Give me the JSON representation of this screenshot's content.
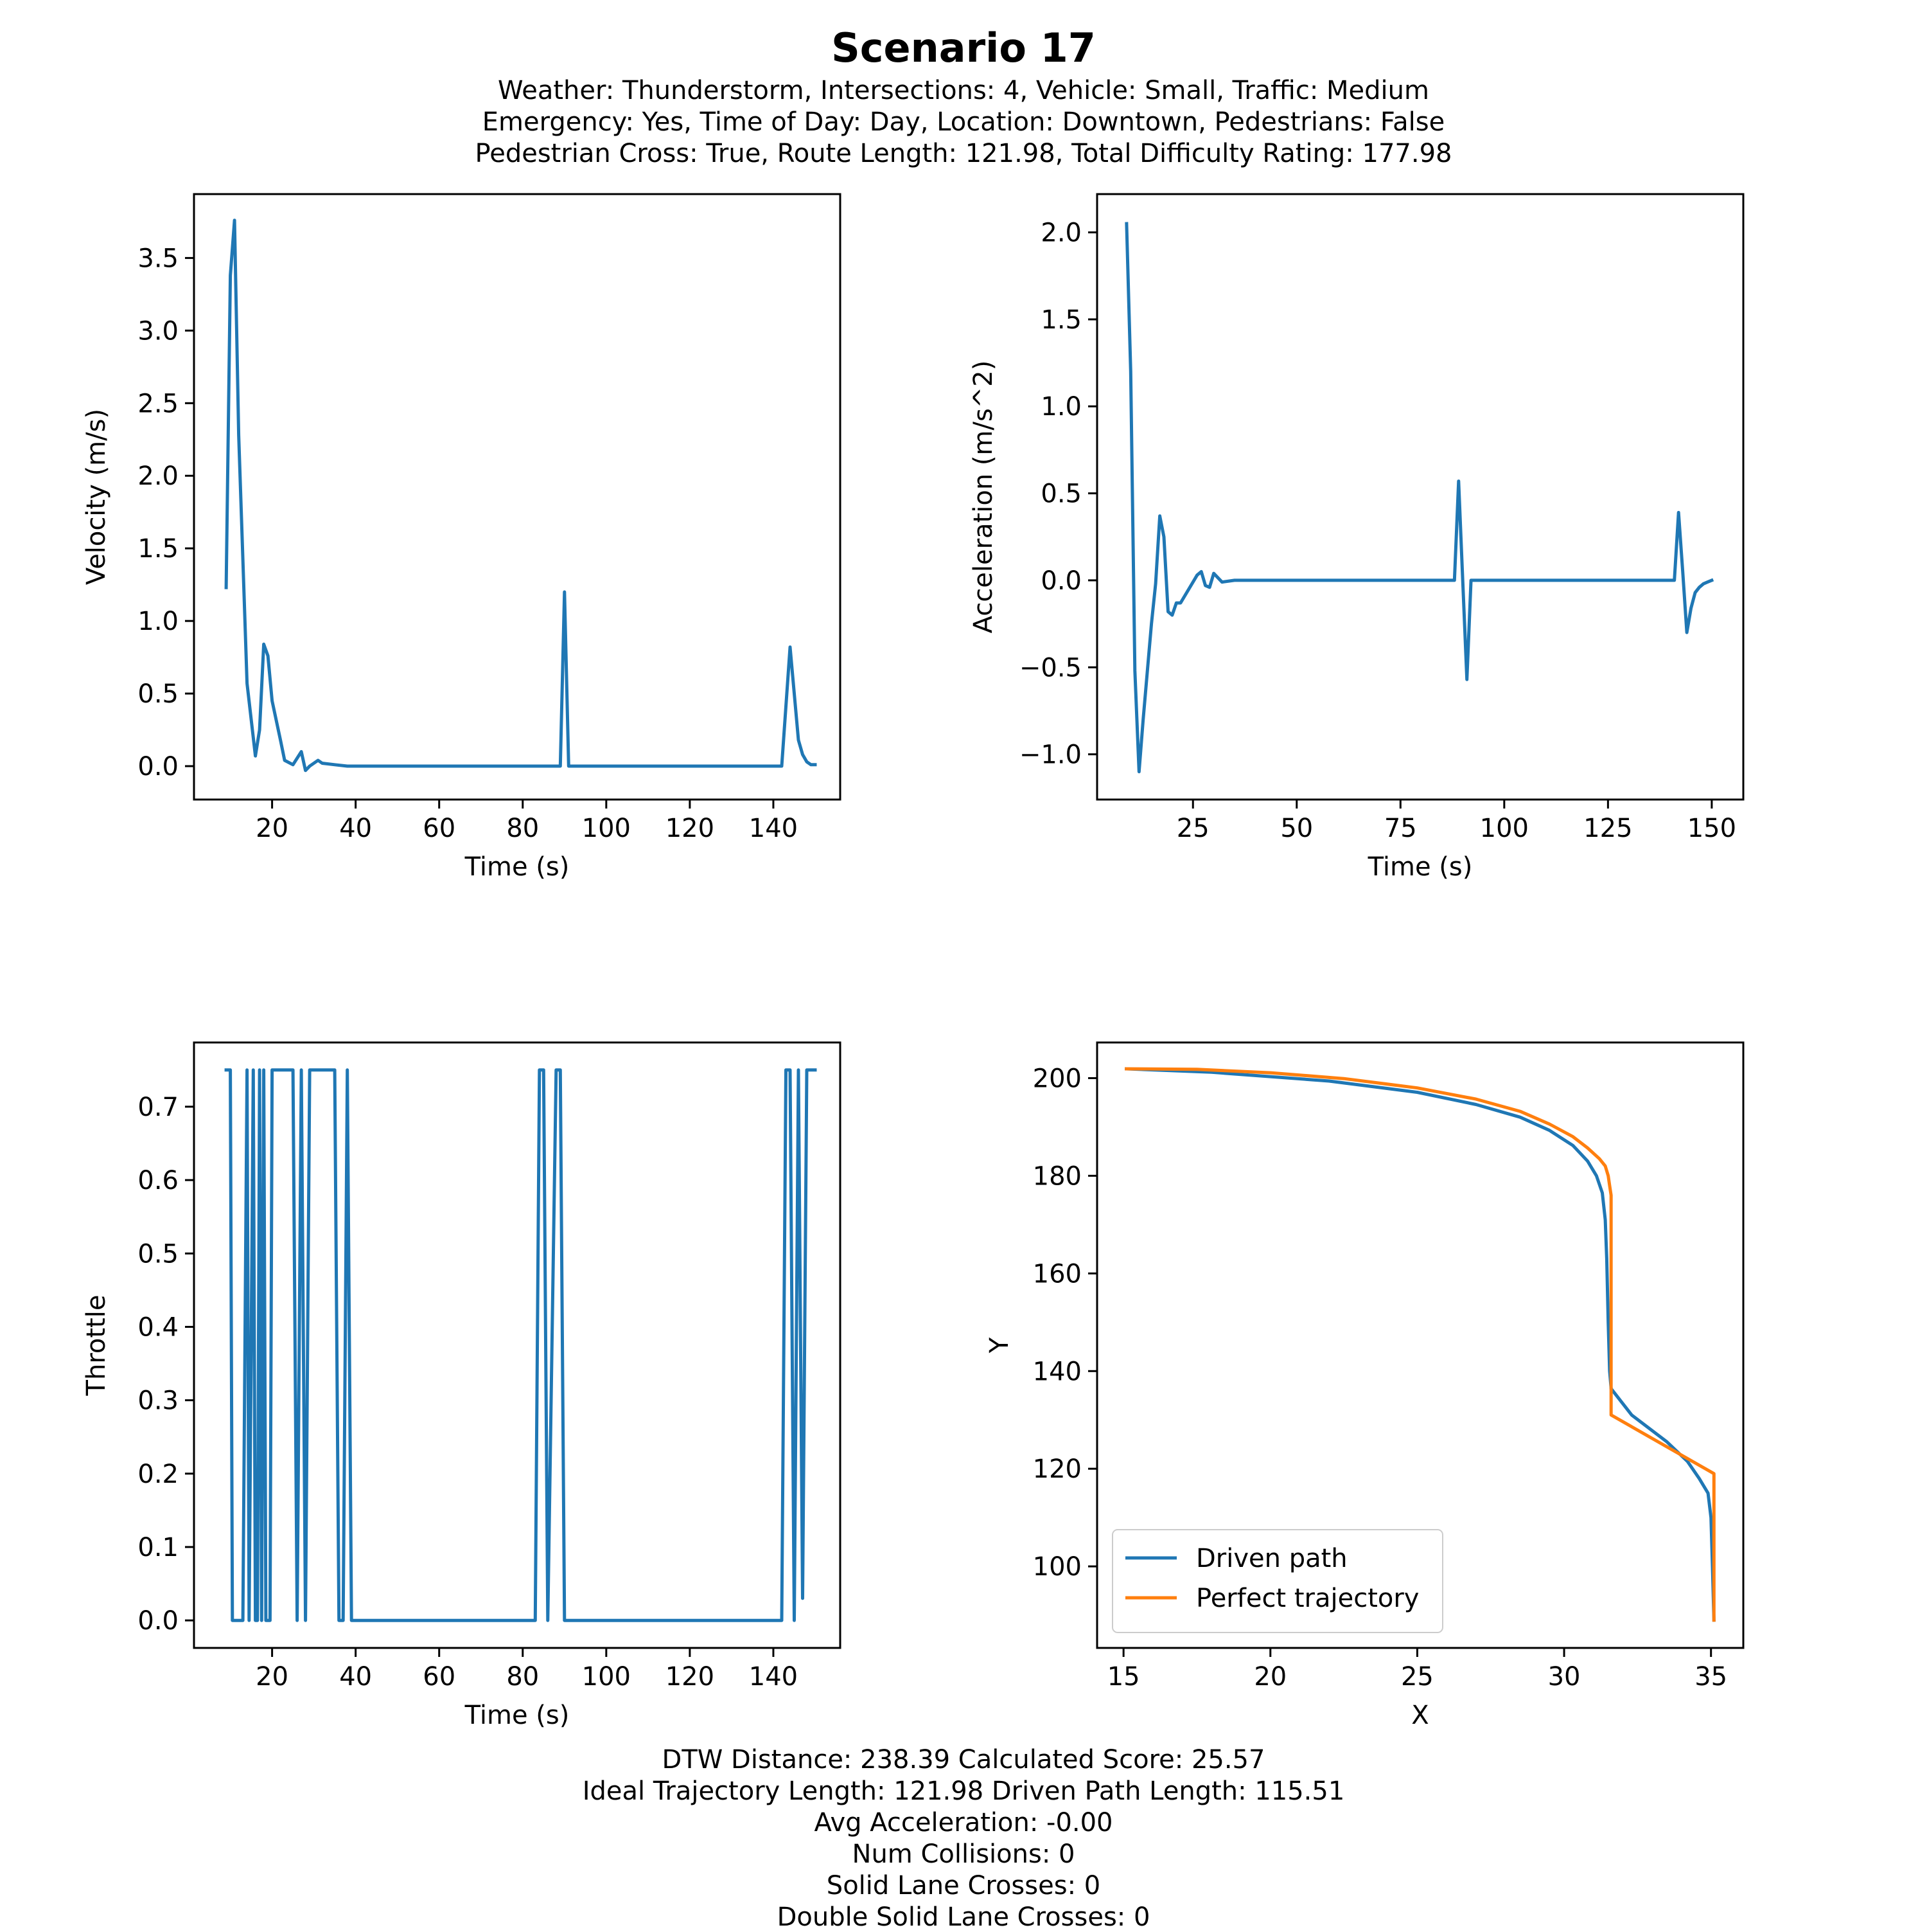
{
  "title": "Scenario 17",
  "subtitle": [
    "Weather: Thunderstorm, Intersections: 4, Vehicle: Small, Traffic: Medium",
    "Emergency: Yes, Time of Day: Day, Location: Downtown, Pedestrians: False",
    "Pedestrian Cross: True, Route Length: 121.98, Total Difficulty Rating: 177.98"
  ],
  "footer": [
    "DTW Distance: 238.39  Calculated Score: 25.57",
    "Ideal Trajectory Length: 121.98   Driven Path Length: 115.51",
    "Avg Acceleration: -0.00",
    "Num Collisions: 0",
    "Solid Lane Crosses: 0",
    "Double Solid Lane Crosses: 0"
  ],
  "colors": {
    "series1": "#1f77b4",
    "series2": "#ff7f0e"
  },
  "chart_data": [
    {
      "id": "velocity",
      "type": "line",
      "xlabel": "Time (s)",
      "ylabel": "Velocity (m/s)",
      "xlim": [
        1.3,
        156
      ],
      "ylim": [
        -0.23,
        3.94
      ],
      "xticks": [
        20,
        40,
        60,
        80,
        100,
        120,
        140
      ],
      "yticks": [
        0.0,
        0.5,
        1.0,
        1.5,
        2.0,
        2.5,
        3.0,
        3.5
      ],
      "ytick_labels": [
        "0.0",
        "0.5",
        "1.0",
        "1.5",
        "2.0",
        "2.5",
        "3.0",
        "3.5"
      ],
      "grid": false,
      "series": [
        {
          "x": [
            9,
            10,
            11,
            12,
            14,
            16,
            17,
            18,
            19,
            20,
            22,
            23,
            25,
            27,
            28,
            29,
            31,
            32,
            35,
            38,
            40,
            60,
            89,
            90,
            91,
            92,
            100,
            120,
            142,
            144,
            146,
            147,
            148,
            149,
            150
          ],
          "y": [
            1.23,
            3.38,
            3.76,
            2.28,
            0.57,
            0.07,
            0.25,
            0.84,
            0.76,
            0.45,
            0.18,
            0.04,
            0.01,
            0.1,
            -0.03,
            0.0,
            0.04,
            0.02,
            0.01,
            0.0,
            0.0,
            0.0,
            0.0,
            1.2,
            0.0,
            0.0,
            0.0,
            0.0,
            0.0,
            0.82,
            0.18,
            0.08,
            0.03,
            0.01,
            0.01
          ]
        }
      ]
    },
    {
      "id": "acceleration",
      "type": "line",
      "xlabel": "Time (s)",
      "ylabel": "Acceleration (m/s^2)",
      "xlim": [
        1.9,
        157.6
      ],
      "ylim": [
        -1.26,
        2.22
      ],
      "xticks": [
        25,
        50,
        75,
        100,
        125,
        150
      ],
      "yticks": [
        -1.0,
        -0.5,
        0.0,
        0.5,
        1.0,
        1.5,
        2.0
      ],
      "ytick_labels": [
        "−1.0",
        "−0.5",
        "0.0",
        "0.5",
        "1.0",
        "1.5",
        "2.0"
      ],
      "grid": false,
      "series": [
        {
          "x": [
            9,
            10,
            11,
            12,
            13,
            15,
            16,
            17,
            18,
            19,
            20,
            21,
            22,
            24,
            25,
            26,
            27,
            28,
            29,
            30,
            32,
            35,
            40,
            60,
            88,
            89,
            90,
            91,
            92,
            100,
            120,
            141,
            142,
            143,
            144,
            145,
            146,
            147,
            148,
            149,
            150
          ],
          "y": [
            2.05,
            1.2,
            -0.52,
            -1.1,
            -0.8,
            -0.25,
            -0.02,
            0.37,
            0.25,
            -0.18,
            -0.2,
            -0.13,
            -0.13,
            -0.05,
            -0.01,
            0.03,
            0.05,
            -0.03,
            -0.04,
            0.04,
            -0.01,
            0.0,
            0.0,
            0.0,
            0.0,
            0.57,
            0.0,
            -0.57,
            0.0,
            0.0,
            0.0,
            0.0,
            0.39,
            0.05,
            -0.3,
            -0.16,
            -0.07,
            -0.04,
            -0.02,
            -0.01,
            0.0
          ]
        }
      ]
    },
    {
      "id": "throttle",
      "type": "line",
      "xlabel": "Time (s)",
      "ylabel": "Throttle",
      "xlim": [
        1.3,
        156
      ],
      "ylim": [
        -0.0375,
        0.7875
      ],
      "xticks": [
        20,
        40,
        60,
        80,
        100,
        120,
        140
      ],
      "yticks": [
        0.0,
        0.1,
        0.2,
        0.3,
        0.4,
        0.5,
        0.6,
        0.7
      ],
      "ytick_labels": [
        "0.0",
        "0.1",
        "0.2",
        "0.3",
        "0.4",
        "0.5",
        "0.6",
        "0.7"
      ],
      "grid": false,
      "series": [
        {
          "x": [
            9,
            10,
            10.5,
            13,
            14,
            14.5,
            15.5,
            16,
            16.5,
            17,
            17.5,
            18,
            18.5,
            19.5,
            20,
            21,
            22,
            25,
            26,
            27,
            28,
            29,
            35,
            36,
            37,
            38,
            39,
            60,
            83,
            84,
            85,
            86,
            88,
            89,
            90,
            91,
            120,
            142,
            143,
            144,
            145,
            146,
            147,
            148,
            150
          ],
          "y": [
            0.75,
            0.75,
            0.0,
            0.0,
            0.75,
            0.0,
            0.75,
            0.0,
            0.0,
            0.75,
            0.0,
            0.75,
            0.0,
            0.0,
            0.75,
            0.75,
            0.75,
            0.75,
            0.0,
            0.75,
            0.0,
            0.75,
            0.75,
            0.0,
            0.0,
            0.75,
            0.0,
            0.0,
            0.0,
            0.75,
            0.75,
            0.0,
            0.75,
            0.75,
            0.0,
            0.0,
            0.0,
            0.0,
            0.75,
            0.75,
            0.0,
            0.75,
            0.03,
            0.75,
            0.75
          ]
        }
      ]
    },
    {
      "id": "trajectory",
      "type": "line",
      "xlabel": "X",
      "ylabel": "Y",
      "xlim": [
        14.1,
        36.1
      ],
      "ylim": [
        83.3,
        207.3
      ],
      "xticks": [
        15,
        20,
        25,
        30,
        35
      ],
      "yticks": [
        100,
        120,
        140,
        160,
        180,
        200
      ],
      "ytick_labels": [
        "100",
        "120",
        "140",
        "160",
        "180",
        "200"
      ],
      "grid": false,
      "legend_position": "lower-left",
      "series": [
        {
          "name": "Driven path",
          "x": [
            15.1,
            18,
            22,
            25,
            27,
            28.5,
            29.5,
            30.3,
            30.8,
            31.1,
            31.3,
            31.4,
            31.45,
            31.5,
            31.55,
            31.6,
            31.6,
            32.3,
            33.5,
            34.2,
            34.6,
            34.9,
            35.0,
            35.05,
            35.1
          ],
          "y": [
            201.9,
            201.2,
            199.4,
            197.1,
            194.6,
            192.0,
            189.3,
            186.2,
            183.0,
            180.0,
            176.5,
            171.0,
            163.0,
            150.0,
            140.0,
            136.5,
            136.4,
            131.0,
            125.5,
            121.5,
            118.0,
            115.0,
            110.0,
            100.0,
            89.0
          ]
        },
        {
          "name": "Perfect trajectory",
          "x": [
            15.1,
            17.5,
            20,
            22.5,
            25,
            27,
            28.5,
            29.5,
            30.3,
            30.8,
            31.2,
            31.4,
            31.5,
            31.55,
            31.6,
            31.6,
            35.1,
            35.1
          ],
          "y": [
            201.9,
            201.8,
            201.1,
            199.9,
            198.0,
            195.7,
            193.2,
            190.6,
            188.0,
            185.7,
            183.5,
            182.0,
            180.0,
            178.0,
            176.0,
            131.0,
            119.0,
            89.0
          ]
        }
      ]
    }
  ]
}
